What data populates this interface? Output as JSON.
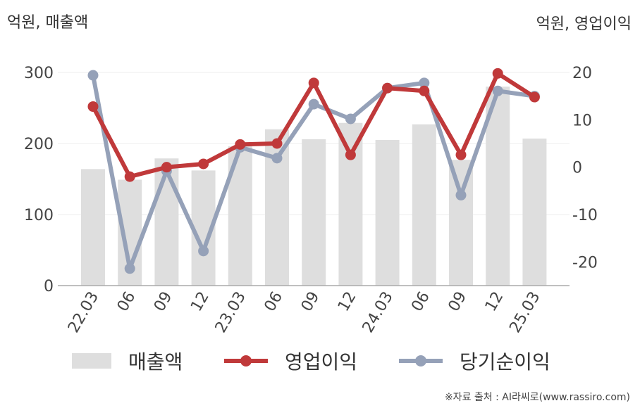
{
  "units": {
    "left": "억원, 매출액",
    "right": "억원, 영업이익"
  },
  "legend": [
    {
      "label": "매출액",
      "kind": "bar",
      "color": "#dedede"
    },
    {
      "label": "영업이익",
      "kind": "line",
      "color": "#c0393a"
    },
    {
      "label": "당기순이익",
      "kind": "line",
      "color": "#95a1b8"
    }
  ],
  "source": "※자료 출처 : AI라씨로(www.rassiro.com)",
  "chart_data": {
    "type": "bar",
    "categories": [
      "22.03",
      "06",
      "09",
      "12",
      "23.03",
      "06",
      "09",
      "12",
      "24.03",
      "06",
      "09",
      "12",
      "25.03"
    ],
    "y_left": {
      "ticks": [
        0,
        100,
        200,
        300
      ],
      "range": [
        0,
        300
      ]
    },
    "y_right": {
      "ticks": [
        -20,
        -10,
        0,
        10,
        20
      ],
      "range": [
        -25,
        20
      ]
    },
    "grid": true,
    "legend_position": "bottom",
    "series": [
      {
        "name": "매출액",
        "type": "bar",
        "axis": "left",
        "color": "#dedede",
        "values": [
          164,
          149,
          179,
          162,
          196,
          220,
          206,
          229,
          205,
          227,
          177,
          280,
          207
        ]
      },
      {
        "name": "영업이익",
        "type": "line",
        "axis": "right",
        "color": "#c0393a",
        "values": [
          12.8,
          -2,
          0,
          0.7,
          4.8,
          5,
          17.8,
          2.6,
          16.7,
          16.1,
          2.6,
          19.8,
          14.8
        ]
      },
      {
        "name": "당기순이익",
        "type": "line",
        "axis": "right",
        "color": "#95a1b8",
        "values": [
          19.4,
          -21.4,
          -0.8,
          -17.7,
          4.2,
          1.9,
          13.3,
          10.2,
          16.7,
          17.8,
          -5.9,
          16.1,
          15
        ]
      }
    ]
  }
}
